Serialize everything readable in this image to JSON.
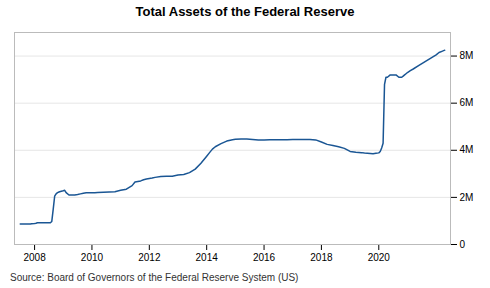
{
  "chart_data": {
    "type": "line",
    "title": "Total Assets of the Federal Reserve",
    "caption": "Source: Board of Governors of the Federal Reserve System (US)",
    "color": "#1a5694",
    "xlim": [
      2007.3,
      2022.5
    ],
    "xticks": [
      2008,
      2010,
      2012,
      2014,
      2016,
      2018,
      2020
    ],
    "ylim": [
      0,
      9000000
    ],
    "yticks": [
      0,
      {
        "value": 2000000,
        "label": "2M"
      },
      {
        "value": 4000000,
        "label": "4M"
      },
      {
        "value": 6000000,
        "label": "6M"
      },
      {
        "value": 8000000,
        "label": "8M"
      }
    ],
    "grid": true,
    "x": [
      2007.5,
      2007.6,
      2007.7,
      2007.8,
      2007.85,
      2007.9,
      2008.0,
      2008.05,
      2008.1,
      2008.55,
      2008.6,
      2008.65,
      2008.7,
      2008.75,
      2008.8,
      2008.85,
      2008.9,
      2009.0,
      2009.05,
      2009.1,
      2009.2,
      2009.3,
      2009.4,
      2009.5,
      2009.6,
      2009.7,
      2009.8,
      2009.9,
      2010.0,
      2010.1,
      2010.2,
      2010.4,
      2010.6,
      2010.8,
      2011.0,
      2011.2,
      2011.4,
      2011.5,
      2011.7,
      2011.8,
      2011.9,
      2012.0,
      2012.1,
      2012.2,
      2012.4,
      2012.6,
      2012.8,
      2013.0,
      2013.1,
      2013.2,
      2013.4,
      2013.6,
      2013.8,
      2014.0,
      2014.1,
      2014.2,
      2014.3,
      2014.5,
      2014.7,
      2014.9,
      2015.0,
      2015.2,
      2015.4,
      2015.6,
      2015.8,
      2016.0,
      2016.2,
      2016.4,
      2016.6,
      2016.8,
      2017.0,
      2017.2,
      2017.4,
      2017.6,
      2017.8,
      2018.0,
      2018.2,
      2018.4,
      2018.6,
      2018.8,
      2019.0,
      2019.2,
      2019.4,
      2019.5,
      2019.6,
      2019.7,
      2019.8,
      2019.85,
      2019.9,
      2020.0,
      2020.05,
      2020.1,
      2020.15,
      2020.2,
      2020.25,
      2020.3,
      2020.4,
      2020.5,
      2020.6,
      2020.7,
      2020.8,
      2020.85,
      2020.9,
      2020.95,
      2021.0,
      2021.1,
      2021.2,
      2021.4,
      2021.6,
      2021.8,
      2022.0,
      2022.1,
      2022.2,
      2022.3
    ],
    "values": [
      870000,
      870000,
      870000,
      870000,
      870000,
      880000,
      890000,
      900000,
      920000,
      920000,
      980000,
      1500000,
      2050000,
      2150000,
      2200000,
      2230000,
      2250000,
      2280000,
      2300000,
      2200000,
      2100000,
      2100000,
      2100000,
      2120000,
      2150000,
      2180000,
      2200000,
      2200000,
      2200000,
      2200000,
      2210000,
      2220000,
      2230000,
      2240000,
      2300000,
      2350000,
      2500000,
      2650000,
      2700000,
      2750000,
      2780000,
      2800000,
      2820000,
      2850000,
      2890000,
      2900000,
      2900000,
      2950000,
      2960000,
      2970000,
      3050000,
      3200000,
      3450000,
      3750000,
      3900000,
      4050000,
      4150000,
      4280000,
      4390000,
      4450000,
      4470000,
      4480000,
      4480000,
      4460000,
      4440000,
      4440000,
      4450000,
      4450000,
      4450000,
      4450000,
      4460000,
      4460000,
      4460000,
      4460000,
      4440000,
      4350000,
      4250000,
      4200000,
      4150000,
      4080000,
      3950000,
      3920000,
      3900000,
      3880000,
      3870000,
      3860000,
      3850000,
      3860000,
      3870000,
      3890000,
      3950000,
      4100000,
      4300000,
      6800000,
      7100000,
      7100000,
      7200000,
      7200000,
      7200000,
      7100000,
      7100000,
      7150000,
      7200000,
      7250000,
      7300000,
      7380000,
      7450000,
      7600000,
      7750000,
      7900000,
      8050000,
      8150000,
      8200000,
      8250000
    ]
  }
}
